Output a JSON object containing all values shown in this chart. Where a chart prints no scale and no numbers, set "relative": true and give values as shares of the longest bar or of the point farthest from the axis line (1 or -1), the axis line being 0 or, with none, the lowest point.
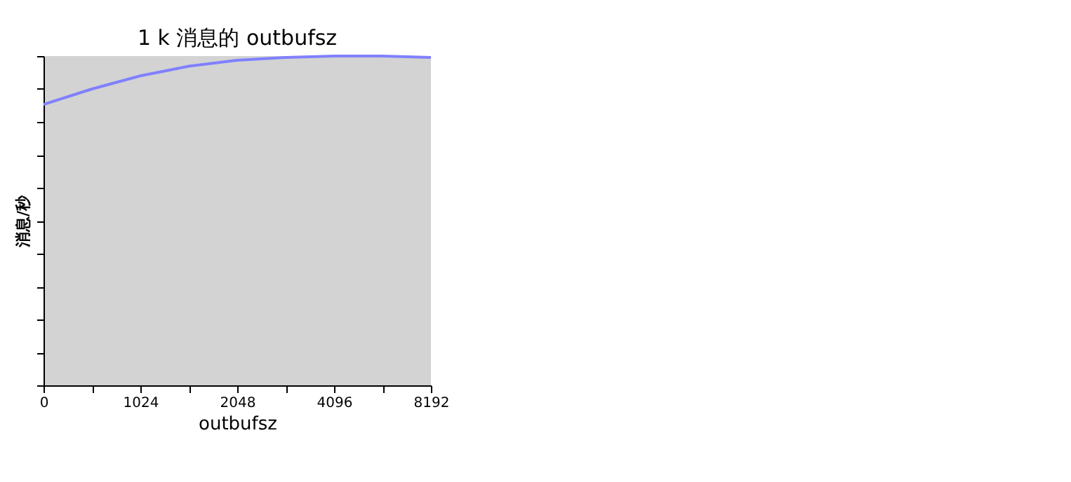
{
  "chart_data": {
    "type": "line",
    "title": "1 k 消息的 outbufsz",
    "xlabel": "outbufsz",
    "ylabel": "消息/秒",
    "categories": [
      "0",
      null,
      "1024",
      null,
      "2048",
      null,
      "4096",
      null,
      "8192"
    ],
    "series": [
      {
        "color": "#8080ff",
        "values": [
          0.853,
          0.9,
          0.94,
          0.969,
          0.987,
          0.996,
          1.0,
          1.0,
          0.996
        ]
      }
    ],
    "relative": true,
    "tick_labels": "x",
    "grid": false,
    "legend": false,
    "marker": "none",
    "line_style": "solid"
  }
}
